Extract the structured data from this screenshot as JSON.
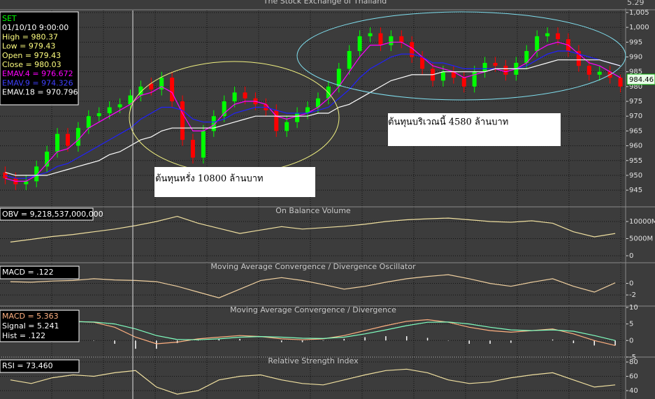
{
  "title": "The Stock Exchange of Thailand",
  "corner_text": "5.29",
  "chart_data": [
    {
      "type": "candlestick",
      "info": [
        "SET",
        "01/10/10 9:00:00",
        "High = 980.37",
        "Low = 979.43",
        "Open = 979.43",
        "Close = 980.03"
      ],
      "info_colors": [
        "#00ff00",
        "#ffffff",
        "#ffff80",
        "#ffff80",
        "#ffff80",
        "#ffff80"
      ],
      "annotations": [
        "ต้นทุนหรั่ง 10800 ล้านบาท",
        "ต้นทุนบริเวณนี้ 4580 ล้านบาท"
      ],
      "price_label": "984.46",
      "up_color": "#00ff00",
      "down_color": "#ff0000",
      "open": [
        951,
        949,
        947,
        948,
        953,
        958,
        964,
        960,
        966,
        970,
        971,
        973,
        974,
        977,
        981,
        979,
        983,
        975,
        962,
        956,
        965,
        970,
        975,
        978,
        976,
        974,
        972,
        965,
        968,
        971,
        973,
        976,
        980,
        986,
        992,
        997,
        998,
        994,
        997,
        995,
        990,
        986,
        982,
        985,
        983,
        980,
        985,
        988,
        987,
        984,
        988,
        992,
        997,
        998,
        996,
        992,
        987,
        984,
        985,
        983
      ],
      "high": [
        953,
        951,
        950,
        955,
        960,
        966,
        966,
        968,
        972,
        973,
        975,
        976,
        979,
        982,
        983,
        985,
        985,
        977,
        964,
        967,
        972,
        977,
        980,
        980,
        978,
        976,
        974,
        970,
        973,
        975,
        978,
        982,
        988,
        994,
        999,
        1000,
        1000,
        999,
        999,
        997,
        992,
        988,
        987,
        987,
        985,
        987,
        990,
        990,
        989,
        990,
        994,
        999,
        1000,
        1000,
        998,
        994,
        989,
        987,
        987,
        984
      ],
      "low": [
        947,
        945,
        945,
        946,
        951,
        956,
        958,
        958,
        964,
        968,
        969,
        971,
        972,
        975,
        977,
        977,
        973,
        960,
        954,
        954,
        963,
        968,
        973,
        974,
        972,
        970,
        963,
        963,
        966,
        969,
        971,
        974,
        978,
        984,
        990,
        995,
        992,
        992,
        993,
        988,
        984,
        980,
        980,
        981,
        978,
        978,
        983,
        985,
        982,
        982,
        986,
        990,
        995,
        994,
        990,
        985,
        982,
        982,
        981,
        978
      ],
      "close": [
        949,
        947,
        948,
        953,
        958,
        964,
        960,
        966,
        970,
        971,
        973,
        974,
        977,
        980,
        979,
        983,
        975,
        962,
        956,
        965,
        970,
        975,
        978,
        976,
        974,
        972,
        965,
        968,
        971,
        973,
        976,
        980,
        986,
        992,
        997,
        998,
        994,
        997,
        995,
        990,
        986,
        982,
        985,
        983,
        980,
        985,
        988,
        987,
        984,
        988,
        992,
        997,
        998,
        996,
        992,
        987,
        984,
        985,
        983,
        980
      ],
      "series": [
        {
          "name": "EMAV.4 = 976.672",
          "color": "#ff00ff",
          "values": [
            949,
            948,
            948,
            950,
            954,
            958,
            959,
            962,
            966,
            968,
            970,
            972,
            974,
            977,
            978,
            980,
            978,
            971,
            965,
            965,
            967,
            971,
            974,
            975,
            975,
            974,
            970,
            969,
            970,
            971,
            973,
            976,
            980,
            985,
            990,
            994,
            994,
            995,
            995,
            993,
            990,
            987,
            986,
            985,
            983,
            984,
            985,
            986,
            985,
            986,
            988,
            992,
            994,
            995,
            994,
            991,
            988,
            987,
            985,
            983
          ]
        },
        {
          "name": "EMAV.9 = 974.326",
          "color": "#2020ff",
          "values": [
            950,
            949,
            949,
            950,
            951,
            953,
            954,
            956,
            958,
            960,
            962,
            964,
            966,
            969,
            971,
            973,
            973,
            972,
            969,
            968,
            968,
            969,
            971,
            972,
            973,
            973,
            972,
            971,
            971,
            971,
            972,
            973,
            976,
            979,
            983,
            986,
            988,
            990,
            991,
            991,
            990,
            988,
            988,
            987,
            986,
            986,
            986,
            986,
            986,
            986,
            987,
            989,
            991,
            992,
            992,
            991,
            990,
            989,
            988,
            987
          ]
        },
        {
          "name": "EMAV.18 = 970.796",
          "color": "#ffffff",
          "values": [
            951,
            950,
            950,
            950,
            950,
            951,
            952,
            953,
            954,
            955,
            957,
            958,
            960,
            962,
            963,
            965,
            966,
            966,
            966,
            966,
            966,
            967,
            968,
            969,
            970,
            970,
            970,
            970,
            970,
            970,
            971,
            971,
            973,
            974,
            976,
            978,
            980,
            982,
            983,
            984,
            984,
            984,
            985,
            985,
            985,
            985,
            985,
            986,
            986,
            986,
            986,
            987,
            988,
            989,
            989,
            989,
            989,
            989,
            988,
            987
          ]
        }
      ],
      "ylim": [
        939.6,
        1005.7
      ],
      "yticks": [
        945,
        950,
        955,
        960,
        965,
        970,
        975,
        980,
        985,
        990,
        995,
        {
          "value": 1000,
          "label": "1,000"
        },
        {
          "value": 1005,
          "label": "1,005"
        }
      ],
      "grid": true
    },
    {
      "type": "line",
      "title": "On Balance Volume",
      "series": [
        {
          "name": "OBV = 9,218,537,000,000",
          "color": "#f0e0a0",
          "values": [
            4000,
            4800,
            5600,
            6200,
            7000,
            7800,
            8800,
            10000,
            11500,
            9500,
            8000,
            6500,
            7500,
            8500,
            7800,
            8200,
            8600,
            9200,
            10000,
            10500,
            10800,
            11000,
            10500,
            10000,
            9800,
            10200,
            9500,
            7000,
            5500,
            6500
          ]
        }
      ],
      "ylim": [
        -1840,
        14080
      ],
      "yticks": [
        0,
        {
          "value": 5000,
          "label": "5000M"
        },
        {
          "value": 10000,
          "label": "10000M"
        }
      ],
      "grid": true
    },
    {
      "type": "line",
      "title": "Moving Average Convergence / Divergence Oscillator",
      "series": [
        {
          "name": "MACD = .122",
          "color": "#f0d0a0",
          "values": [
            0.3,
            0.2,
            0.4,
            0.5,
            0.8,
            0.6,
            0.5,
            0.3,
            -0.5,
            -1.5,
            -2.5,
            -1,
            0.5,
            1,
            0.5,
            -0.2,
            -1,
            -0.5,
            0.2,
            0.8,
            1.2,
            1.5,
            0.8,
            0,
            -0.5,
            0.2,
            0.8,
            -0.5,
            -1.5,
            0.1
          ]
        }
      ],
      "ylim": [
        -3.8,
        3.45
      ],
      "yticks": [
        -2,
        0
      ],
      "grid": true
    },
    {
      "type": "line",
      "title": "Moving Average Convergence / Divergence",
      "series": [
        {
          "name": "MACD = 5.363",
          "color": "#ffb080",
          "values": [
            5.5,
            5.8,
            6,
            5.8,
            5.5,
            4,
            1,
            -1,
            -0.5,
            0.5,
            1,
            1.5,
            1.2,
            0.5,
            0.2,
            0.5,
            1.5,
            3,
            4.5,
            5.8,
            6.3,
            5.5,
            4,
            3,
            2.5,
            3,
            3.5,
            2,
            0,
            -1.5
          ]
        },
        {
          "name": "Signal = 5.241",
          "color": "#80ffc0",
          "values": [
            5,
            5.3,
            5.6,
            5.7,
            5.6,
            5,
            3.5,
            1.5,
            0.3,
            0.2,
            0.5,
            1,
            1.2,
            1,
            0.7,
            0.6,
            1,
            2,
            3.2,
            4.5,
            5.5,
            5.6,
            5,
            4,
            3.2,
            3,
            3.2,
            2.8,
            1.5,
            0
          ]
        }
      ],
      "hist": {
        "name": "Hist = .122",
        "color": "#ffffff",
        "values": [
          0.5,
          0.5,
          0.4,
          0.1,
          -0.1,
          -1,
          -2.5,
          -2.5,
          -0.8,
          0.3,
          0.5,
          0.5,
          0,
          -0.5,
          -0.5,
          -0.1,
          0.5,
          1,
          1.3,
          1.3,
          0.8,
          -0.1,
          -1,
          -1,
          -0.7,
          0,
          0.3,
          -0.8,
          -1.5,
          -1.5
        ]
      },
      "ylim": [
        -4.8,
        10.2
      ],
      "yticks": [
        -5,
        0,
        5,
        10
      ],
      "grid": true
    },
    {
      "type": "line",
      "title": "Relative Strength Index",
      "series": [
        {
          "name": "RSI = 73.460",
          "color": "#f0e0a0",
          "values": [
            55,
            50,
            58,
            62,
            60,
            65,
            68,
            45,
            35,
            40,
            55,
            60,
            62,
            55,
            50,
            48,
            55,
            62,
            68,
            70,
            65,
            55,
            50,
            52,
            58,
            62,
            65,
            55,
            45,
            48
          ]
        }
      ],
      "ylim": [
        28.3,
        85.9
      ],
      "yticks": [
        40,
        60,
        80
      ],
      "grid": true
    }
  ]
}
